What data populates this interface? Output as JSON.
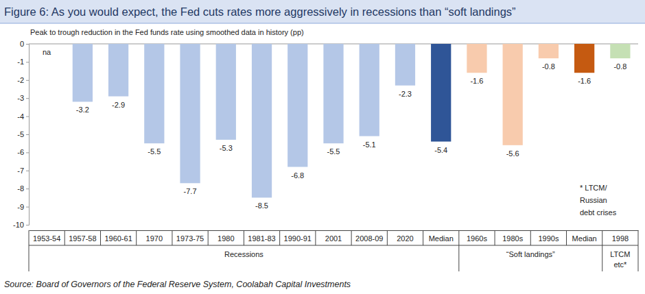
{
  "chart_data": {
    "type": "bar",
    "title": "Figure 6: As you would expect, the Fed cuts rates more aggressively in recessions than “soft landings”",
    "subtitle": "Peak to trough reduction in the Fed funds rate using smoothed data in history (pp)",
    "categories": [
      "1953-54",
      "1957-58",
      "1960-61",
      "1970",
      "1973-75",
      "1980",
      "1981-83",
      "1990-91",
      "2001",
      "2008-09",
      "2020",
      "Median",
      "1960s",
      "1980s",
      "1990s",
      "Median",
      "1998"
    ],
    "values": [
      null,
      -3.2,
      -2.9,
      -5.5,
      -7.7,
      -5.3,
      -8.5,
      -6.8,
      -5.5,
      -5.1,
      -2.3,
      -5.4,
      -1.6,
      -5.6,
      -0.8,
      -1.6,
      -0.8
    ],
    "value_labels": [
      "na",
      "-3.2",
      "-2.9",
      "-5.5",
      "-7.7",
      "-5.3",
      "-8.5",
      "-6.8",
      "-5.5",
      "-5.1",
      "-2.3",
      "-5.4",
      "-1.6",
      "-5.6",
      "-0.8",
      "-1.6",
      "-0.8"
    ],
    "colors": [
      "#b4c7e7",
      "#b4c7e7",
      "#b4c7e7",
      "#b4c7e7",
      "#b4c7e7",
      "#b4c7e7",
      "#b4c7e7",
      "#b4c7e7",
      "#b4c7e7",
      "#b4c7e7",
      "#b4c7e7",
      "#2f5597",
      "#f8cbad",
      "#f8cbad",
      "#f8cbad",
      "#c55a11",
      "#c5e0b4"
    ],
    "groups": [
      {
        "label": "Recessions",
        "count": 12
      },
      {
        "label": "“Soft landings”",
        "count": 4
      },
      {
        "label": "LTCM etc*",
        "count": 1
      }
    ],
    "annotation": [
      "* LTCM/",
      "Russian",
      "debt crises"
    ],
    "source": "Source: Board of Governors of the Federal Reserve System, Coolabah Capital Investments",
    "ylim": [
      -10,
      0
    ],
    "yticks": [
      0,
      -1,
      -2,
      -3,
      -4,
      -5,
      -6,
      -7,
      -8,
      -9,
      -10
    ],
    "grid": false,
    "data_labels": true
  }
}
